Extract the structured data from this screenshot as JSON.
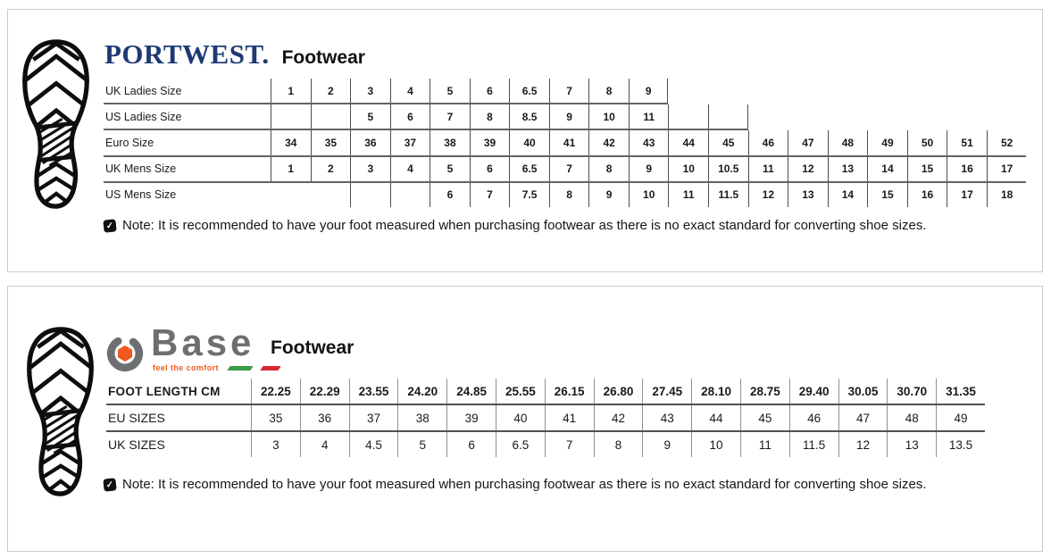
{
  "portwest": {
    "brand": "PORTWEST.",
    "brand_color": "#1e3a74",
    "product_line": "Footwear",
    "icons": {
      "left_graphic": "boot-sole-print-icon",
      "note": "check-square-icon"
    },
    "table": {
      "rows": [
        {
          "label": "UK Ladies Size",
          "cells": [
            "1",
            "2",
            "3",
            "4",
            "5",
            "6",
            "6.5",
            "7",
            "8",
            "9",
            null,
            null,
            null,
            null,
            null,
            null,
            null,
            null,
            null
          ]
        },
        {
          "label": "US Ladies Size",
          "cells": [
            "",
            "",
            "5",
            "6",
            "7",
            "8",
            "8.5",
            "9",
            "10",
            "11",
            "",
            "",
            null,
            null,
            null,
            null,
            null,
            null,
            null
          ]
        },
        {
          "label": "Euro Size",
          "cells": [
            "34",
            "35",
            "36",
            "37",
            "38",
            "39",
            "40",
            "41",
            "42",
            "43",
            "44",
            "45",
            "46",
            "47",
            "48",
            "49",
            "50",
            "51",
            "52"
          ]
        },
        {
          "label": "UK Mens Size",
          "cells": [
            "1",
            "2",
            "3",
            "4",
            "5",
            "6",
            "6.5",
            "7",
            "8",
            "9",
            "10",
            "10.5",
            "11",
            "12",
            "13",
            "14",
            "15",
            "16",
            "17"
          ]
        },
        {
          "label": "US Mens Size",
          "cells": [
            null,
            null,
            "",
            "",
            "6",
            "7",
            "7.5",
            "8",
            "9",
            "10",
            "11",
            "11.5",
            "12",
            "13",
            "14",
            "15",
            "16",
            "17",
            "18"
          ]
        }
      ]
    },
    "note": "Note: It is recommended to have your foot measured when purchasing footwear as there is no exact standard for converting shoe sizes."
  },
  "base": {
    "brand": "Base",
    "tagline": "feel the comfort",
    "product_line": "Footwear",
    "brand_gray": "#6d7072",
    "brand_orange": "#f05a1e",
    "flag_green": "#3f9c49",
    "flag_red": "#d8282f",
    "icons": {
      "left_graphic": "boot-sole-print-icon",
      "emblem": "hex-nut-icon",
      "note": "check-square-icon"
    },
    "table": {
      "rows": [
        {
          "label": "FOOT LENGTH CM",
          "header": true,
          "cells": [
            "22.25",
            "22.29",
            "23.55",
            "24.20",
            "24.85",
            "25.55",
            "26.15",
            "26.80",
            "27.45",
            "28.10",
            "28.75",
            "29.40",
            "30.05",
            "30.70",
            "31.35"
          ]
        },
        {
          "label": "EU SIZES",
          "cells": [
            "35",
            "36",
            "37",
            "38",
            "39",
            "40",
            "41",
            "42",
            "43",
            "44",
            "45",
            "46",
            "47",
            "48",
            "49"
          ]
        },
        {
          "label": "UK SIZES",
          "cells": [
            "3",
            "4",
            "4.5",
            "5",
            "6",
            "6.5",
            "7",
            "8",
            "9",
            "10",
            "11",
            "11.5",
            "12",
            "13",
            "13.5"
          ]
        }
      ]
    },
    "note": "Note: It is recommended to have your foot measured when purchasing footwear as there is no exact standard for converting shoe sizes."
  }
}
